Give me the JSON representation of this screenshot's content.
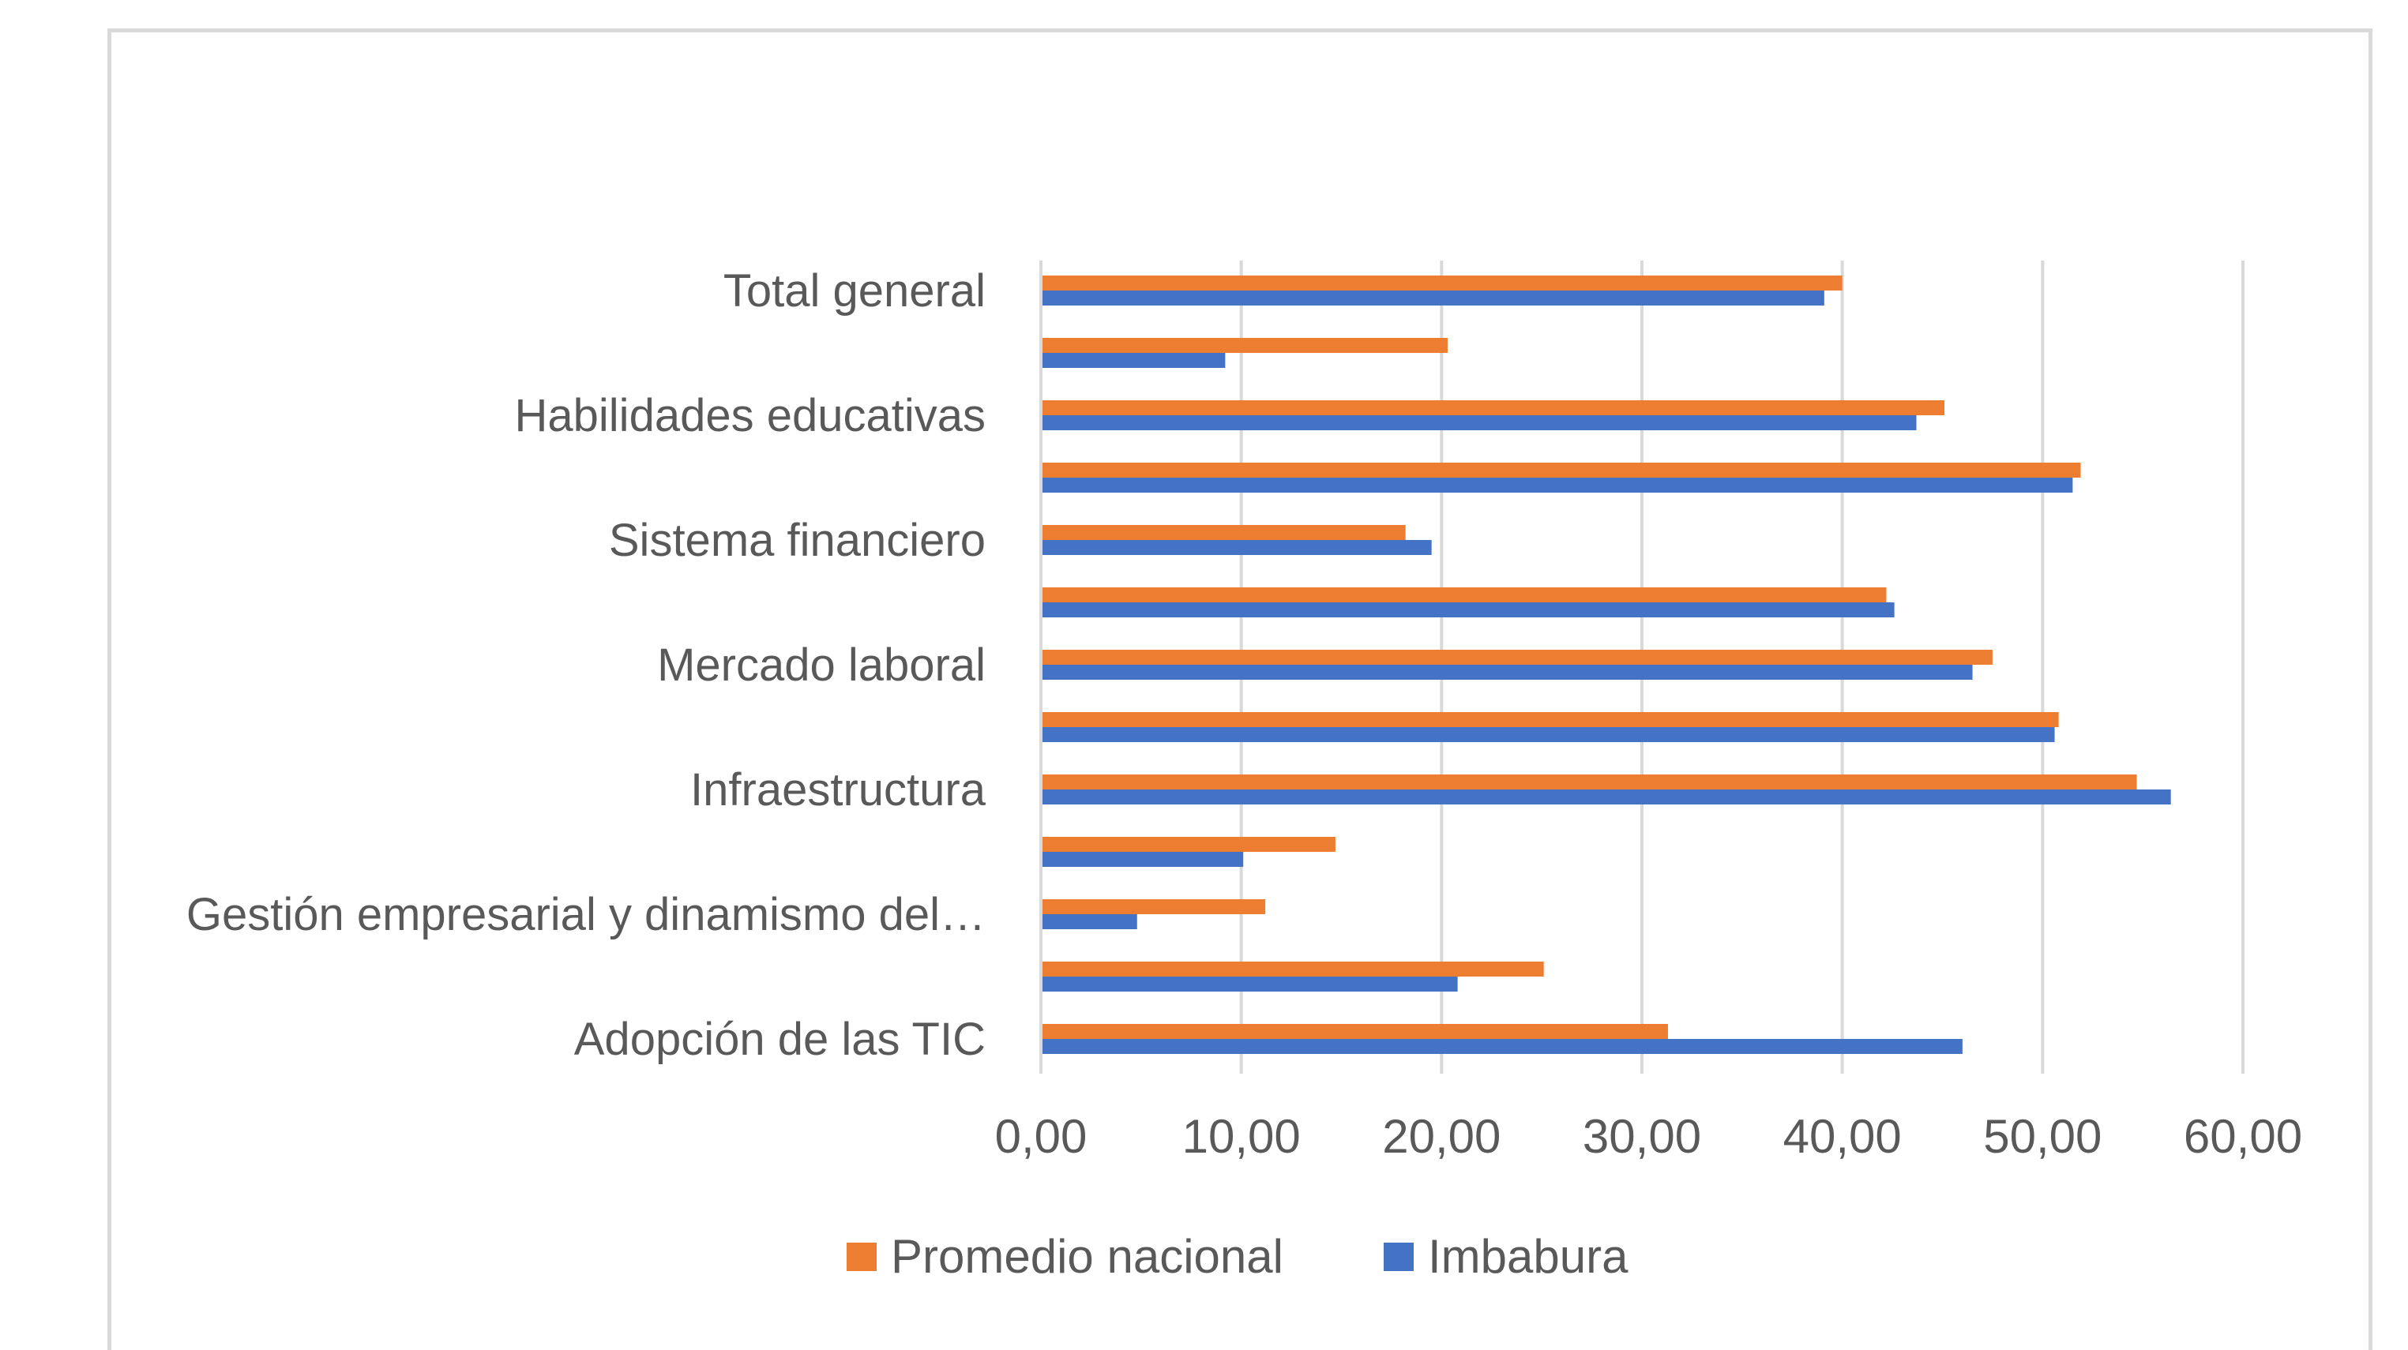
{
  "chart_data": {
    "type": "bar",
    "orientation": "horizontal",
    "categories": [
      "Adopción de las TIC",
      "",
      "Gestión empresarial y dinamismo del…",
      "",
      "Infraestructura",
      "",
      "Mercado laboral",
      "",
      "Sistema financiero",
      "",
      "Habilidades educativas",
      "",
      "Total general"
    ],
    "series": [
      {
        "name": "Promedio nacional",
        "color": "#ed7d31",
        "values": [
          31.3,
          25.1,
          11.2,
          14.7,
          54.7,
          50.8,
          47.5,
          42.2,
          18.2,
          51.9,
          45.1,
          20.3,
          40.0
        ]
      },
      {
        "name": "Imbabura",
        "color": "#4472c4",
        "values": [
          46.0,
          20.8,
          4.8,
          10.1,
          56.4,
          50.6,
          46.5,
          42.6,
          19.5,
          51.5,
          43.7,
          9.2,
          39.1
        ]
      }
    ],
    "xlim": [
      0,
      60
    ],
    "xticks": [
      "0,00",
      "10,00",
      "20,00",
      "30,00",
      "40,00",
      "50,00",
      "60,00"
    ],
    "grid": true,
    "legend_position": "bottom"
  }
}
